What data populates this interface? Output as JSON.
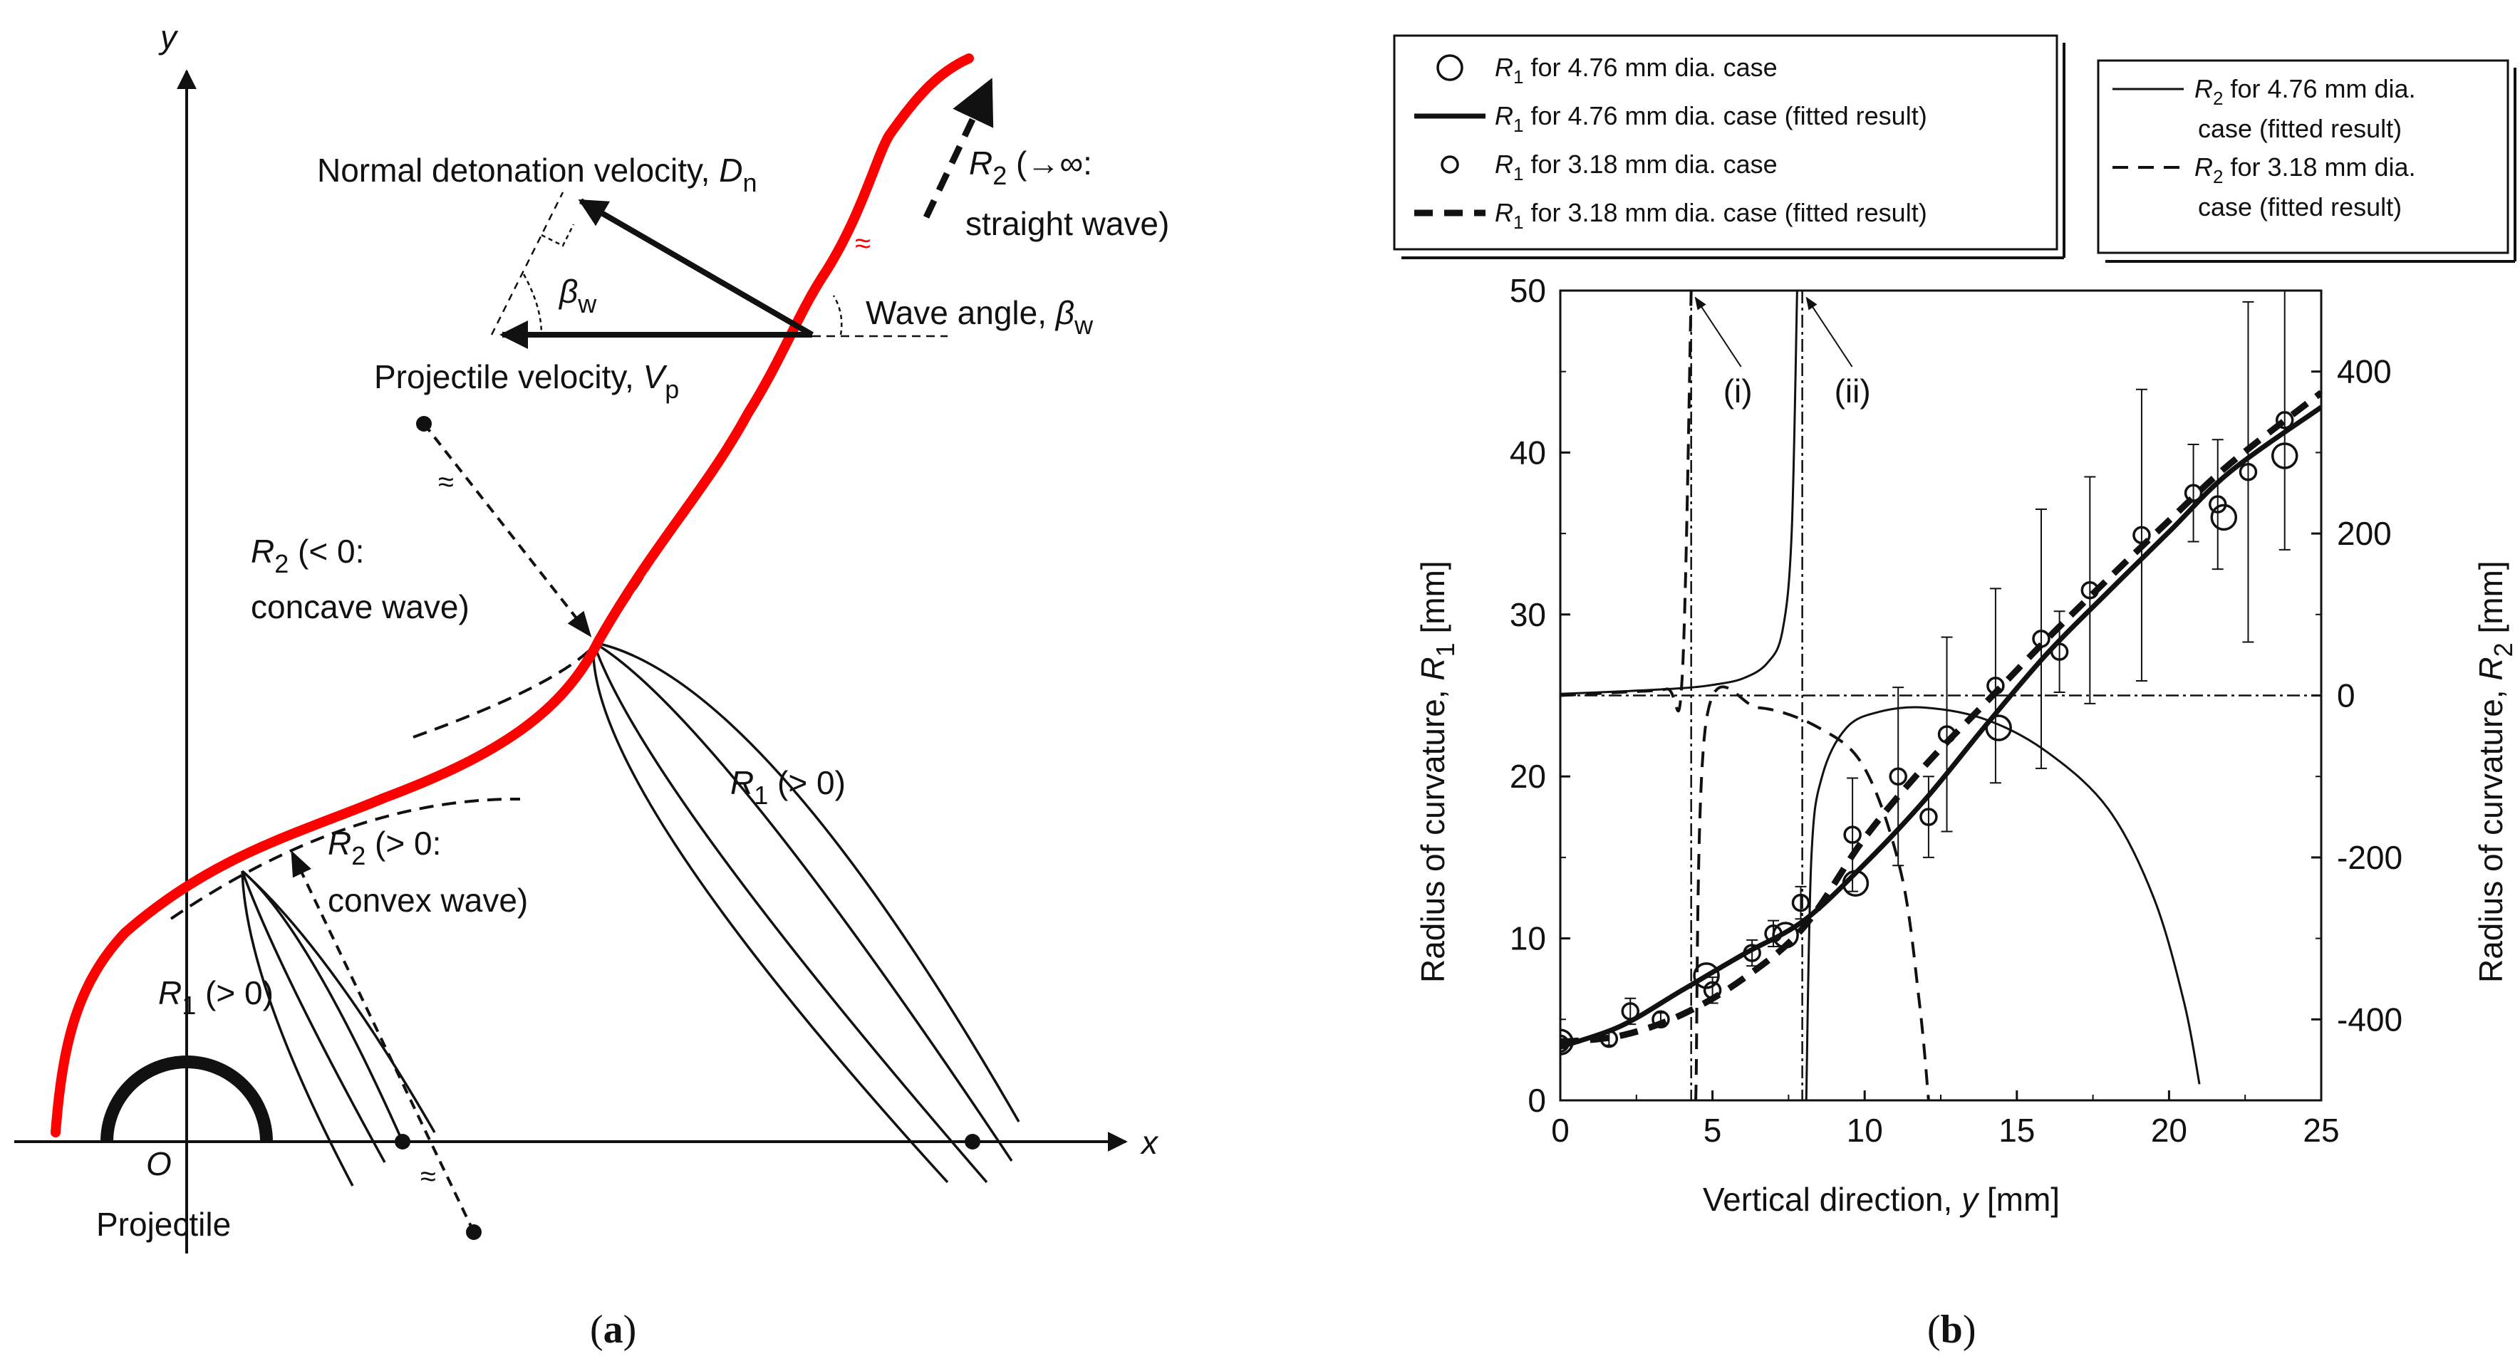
{
  "panel_a": {
    "axis_x": "x",
    "axis_y": "y",
    "origin": "O",
    "projectile": "Projectile",
    "normal_velocity": "Normal detonation velocity, ",
    "normal_velocity_sym": "D",
    "normal_velocity_sub": "n",
    "projectile_velocity": "Projectile velocity, ",
    "projectile_velocity_sym": "V",
    "projectile_velocity_sub": "p",
    "wave_angle": "Wave angle, ",
    "beta_sym": "β",
    "beta_sub": "w",
    "r2_inf_sym": "R",
    "r2_inf_sub": "2",
    "r2_inf_text1": " (→∞:",
    "r2_inf_text2": "straight wave)",
    "r2_neg_sym": "R",
    "r2_neg_sub": "2",
    "r2_neg_text1": " (< 0:",
    "r2_neg_text2": "concave wave)",
    "r2_pos_sym": "R",
    "r2_pos_sub": "2",
    "r2_pos_text1": " (> 0:",
    "r2_pos_text2": "convex wave)",
    "r1_upper_sym": "R",
    "r1_upper_sub": "1",
    "r1_upper_text": " (> 0)",
    "r1_lower_sym": "R",
    "r1_lower_sub": "1",
    "r1_lower_text": " (> 0)",
    "caption": "a",
    "colors": {
      "wave": "#ff0000",
      "ink": "#111111"
    }
  },
  "panel_b": {
    "caption": "b",
    "legend_left": [
      {
        "sym": "R",
        "sub": "1",
        "text": " for 4.76 mm dia. case",
        "marker": "circle-large"
      },
      {
        "sym": "R",
        "sub": "1",
        "text": " for 4.76 mm dia. case (fitted result)",
        "marker": "solid-thick"
      },
      {
        "sym": "R",
        "sub": "1",
        "text": " for 3.18 mm dia. case",
        "marker": "circle-small"
      },
      {
        "sym": "R",
        "sub": "1",
        "text": " for 3.18 mm dia. case (fitted result)",
        "marker": "dashed-thick"
      }
    ],
    "legend_right": [
      {
        "sym": "R",
        "sub": "2",
        "line1": " for 4.76 mm dia.",
        "line2": "case (fitted result)",
        "marker": "solid-thin"
      },
      {
        "sym": "R",
        "sub": "2",
        "line1": " for 3.18 mm dia.",
        "line2": "case (fitted result)",
        "marker": "dashed-thin"
      }
    ],
    "annotation_i": "(i)",
    "annotation_ii": "(ii)"
  },
  "chart_data": {
    "type": "scatter",
    "title": "",
    "xlabel": "Vertical direction, ",
    "xlabel_sym": "y",
    "xlabel_unit": " [mm]",
    "ylabel": "Radius of curvature, ",
    "ylabel_sym": "R",
    "ylabel_sub": "1",
    "ylabel_unit": " [mm]",
    "y2label": "Radius of curvature, ",
    "y2label_sym": "R",
    "y2label_sub": "2",
    "y2label_unit": " [mm]",
    "xlim": [
      0,
      25
    ],
    "ylim": [
      0,
      50
    ],
    "y2lim": [
      -500,
      500
    ],
    "xticks": [
      0,
      5,
      10,
      15,
      20,
      25
    ],
    "yticks": [
      0,
      10,
      20,
      30,
      40,
      50
    ],
    "y2ticks": [
      -400,
      -200,
      0,
      200,
      400
    ],
    "xtick_labels": [
      "0",
      "5",
      "10",
      "15",
      "20",
      "25"
    ],
    "ytick_labels": [
      "0",
      "10",
      "20",
      "30",
      "40",
      "50"
    ],
    "y2tick_labels": [
      "-400",
      "-200",
      "0",
      "200",
      "400"
    ],
    "series": [
      {
        "name": "R1 for 4.76 mm dia. case",
        "axis": "left",
        "style": "circle-large",
        "x": [
          0.0,
          4.8,
          7.4,
          9.7,
          14.4,
          21.8,
          23.8
        ],
        "y": [
          3.6,
          7.7,
          10.2,
          13.4,
          23.0,
          36.0,
          39.8
        ],
        "err": [
          0,
          0,
          0,
          0,
          0,
          0,
          0
        ]
      },
      {
        "name": "R1 for 3.18 mm dia. case",
        "axis": "left",
        "style": "circle-small",
        "x": [
          0.0,
          1.6,
          2.3,
          3.3,
          5.0,
          6.3,
          7.0,
          7.9,
          9.6,
          11.1,
          12.1,
          12.7,
          14.3,
          15.8,
          16.4,
          17.4,
          19.1,
          20.8,
          21.6,
          22.6,
          23.8
        ],
        "y": [
          3.5,
          3.8,
          5.5,
          5.0,
          6.8,
          9.1,
          10.3,
          12.2,
          16.4,
          20.0,
          17.5,
          22.6,
          25.6,
          28.5,
          27.7,
          31.5,
          34.9,
          37.5,
          36.8,
          38.8,
          42.0
        ],
        "err": [
          0.3,
          0.4,
          0.8,
          0.4,
          0.8,
          0.8,
          0.8,
          1.0,
          3.5,
          5.5,
          2.5,
          6.0,
          6.0,
          8.0,
          2.5,
          7.0,
          9.0,
          3.0,
          4.0,
          10.5,
          8.0
        ]
      },
      {
        "name": "R1 for 4.76 mm dia. case (fitted result)",
        "axis": "left",
        "style": "solid-thick",
        "x": [
          0,
          2,
          4,
          6,
          8,
          10,
          12,
          14,
          16,
          18,
          20,
          22,
          25
        ],
        "y": [
          3.3,
          4.6,
          6.8,
          9.0,
          11.1,
          14.6,
          18.6,
          23.2,
          27.6,
          31.4,
          35.1,
          38.8,
          42.8
        ]
      },
      {
        "name": "R1 for 3.18 mm dia. case (fitted result)",
        "axis": "left",
        "style": "dashed-thick",
        "x": [
          0,
          2,
          4,
          6,
          8,
          10,
          12,
          14,
          16,
          18,
          20,
          22,
          25
        ],
        "y": [
          3.6,
          4.0,
          5.3,
          7.5,
          10.7,
          16.2,
          20.7,
          24.6,
          28.5,
          32.2,
          35.8,
          39.3,
          43.7
        ]
      },
      {
        "name": "R2 for 4.76 mm dia. case (fitted result)",
        "axis": "right",
        "style": "solid-thin",
        "segments": [
          {
            "x": [
              0,
              2,
              4,
              5,
              6,
              6.8,
              7.3,
              7.6,
              7.78
            ],
            "y": [
              2,
              5,
              9,
              13,
              21,
              40,
              80,
              200,
              500
            ]
          },
          {
            "x": [
              8.08,
              8.25,
              8.6,
              9.4,
              10.5,
              12,
              14,
              16,
              18,
              19.5,
              20.5,
              21.0
            ],
            "y": [
              -500,
              -200,
              -100,
              -40,
              -20,
              -15,
              -30,
              -70,
              -140,
              -250,
              -380,
              -480
            ]
          }
        ]
      },
      {
        "name": "R2 for 3.18 mm dia. case (fitted result)",
        "axis": "right",
        "style": "dashed-thin",
        "segments": [
          {
            "x": [
              0,
              2,
              3.5,
              4.0,
              4.3
            ],
            "y": [
              0,
              4,
              8,
              20,
              500
            ]
          },
          {
            "x": [
              4.45,
              4.8,
              6.5,
              8.5,
              10,
              11.2,
              11.8,
              12.1
            ],
            "y": [
              -500,
              -30,
              -15,
              -40,
              -90,
              -220,
              -380,
              -500
            ]
          }
        ]
      }
    ],
    "annotations": [
      {
        "text": "(i)",
        "x": 4.3
      },
      {
        "text": "(ii)",
        "x": 7.95
      }
    ]
  }
}
